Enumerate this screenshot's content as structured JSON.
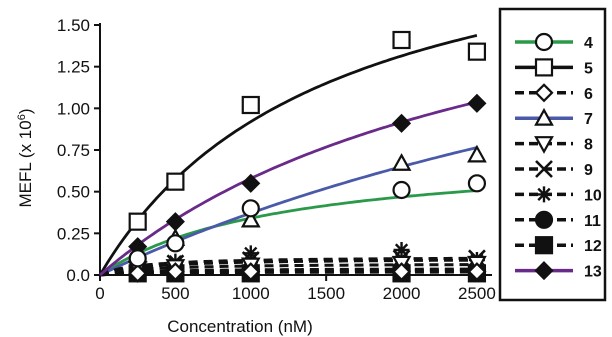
{
  "chart_data": {
    "type": "scatter",
    "xlabel": "Concentration (nM)",
    "ylabel_main": "MEFL (x 10",
    "ylabel_exp": "6",
    "ylabel_close": ")",
    "xlim": [
      0,
      2600
    ],
    "ylim": [
      0,
      1.5
    ],
    "x_ticks": [
      "0",
      "500",
      "1000",
      "1500",
      "2000",
      "2500"
    ],
    "y_ticks": [
      "0.0",
      "0.25",
      "0.50",
      "0.75",
      "1.00",
      "1.25",
      "1.50"
    ],
    "grid": false,
    "legend_position": "right",
    "series": [
      {
        "name": "4",
        "marker": "circle",
        "line_color": "#2a9a4a",
        "line_style": "solid",
        "fit_max": 0.75,
        "fit_k": 1200,
        "points": [
          [
            250,
            0.1
          ],
          [
            500,
            0.19
          ],
          [
            1000,
            0.4
          ],
          [
            2000,
            0.51
          ],
          [
            2500,
            0.55
          ]
        ]
      },
      {
        "name": "5",
        "marker": "square",
        "line_color": "#111111",
        "line_style": "solid",
        "fit_max": 2.3,
        "fit_k": 1500,
        "points": [
          [
            250,
            0.32
          ],
          [
            500,
            0.56
          ],
          [
            1000,
            1.02
          ],
          [
            2000,
            1.41
          ],
          [
            2500,
            1.34
          ]
        ]
      },
      {
        "name": "6",
        "marker": "diamond-open",
        "line_color": "#111111",
        "line_style": "dashed",
        "fit_max": 0.03,
        "fit_k": 300,
        "points": [
          [
            250,
            0.01
          ],
          [
            500,
            0.02
          ],
          [
            1000,
            0.02
          ],
          [
            2000,
            0.02
          ],
          [
            2500,
            0.02
          ]
        ]
      },
      {
        "name": "7",
        "marker": "triangle-up",
        "line_color": "#4a5aa8",
        "line_style": "solid",
        "fit_max": 2.6,
        "fit_k": 6000,
        "points": [
          [
            250,
            0.12
          ],
          [
            500,
            0.22
          ],
          [
            1000,
            0.33
          ],
          [
            2000,
            0.67
          ],
          [
            2500,
            0.72
          ]
        ]
      },
      {
        "name": "8",
        "marker": "triangle-down",
        "line_color": "#111111",
        "line_style": "dashed",
        "fit_max": 0.07,
        "fit_k": 300,
        "points": [
          [
            250,
            0.04
          ],
          [
            500,
            0.05
          ],
          [
            1000,
            0.06
          ],
          [
            2000,
            0.07
          ],
          [
            2500,
            0.07
          ]
        ]
      },
      {
        "name": "9",
        "marker": "x",
        "line_color": "#111111",
        "line_style": "dashed",
        "fit_max": 0.1,
        "fit_k": 300,
        "points": [
          [
            250,
            0.05
          ],
          [
            500,
            0.07
          ],
          [
            1000,
            0.09
          ],
          [
            2000,
            0.1
          ],
          [
            2500,
            0.1
          ]
        ]
      },
      {
        "name": "10",
        "marker": "asterisk",
        "line_color": "#111111",
        "line_style": "dashed",
        "fit_max": 0.11,
        "fit_k": 250,
        "points": [
          [
            250,
            0.06
          ],
          [
            500,
            0.08
          ],
          [
            1000,
            0.13
          ],
          [
            2000,
            0.15
          ],
          [
            2500,
            0.09
          ]
        ]
      },
      {
        "name": "11",
        "marker": "circle-filled",
        "line_color": "#111111",
        "line_style": "dashed",
        "fit_max": 0.04,
        "fit_k": 300,
        "points": [
          [
            250,
            0.02
          ],
          [
            500,
            0.03
          ],
          [
            1000,
            0.03
          ],
          [
            2000,
            0.03
          ],
          [
            2500,
            0.03
          ]
        ]
      },
      {
        "name": "12",
        "marker": "square-filled",
        "line_color": "#111111",
        "line_style": "dashed",
        "fit_max": 0.02,
        "fit_k": 300,
        "points": [
          [
            250,
            0.01
          ],
          [
            500,
            0.01
          ],
          [
            1000,
            0.01
          ],
          [
            2000,
            0.01
          ],
          [
            2500,
            0.01
          ]
        ]
      },
      {
        "name": "13",
        "marker": "diamond-filled",
        "line_color": "#6a2a8a",
        "line_style": "solid",
        "fit_max": 2.2,
        "fit_k": 2800,
        "points": [
          [
            250,
            0.17
          ],
          [
            500,
            0.32
          ],
          [
            1000,
            0.55
          ],
          [
            2000,
            0.91
          ],
          [
            2500,
            1.03
          ]
        ]
      }
    ]
  }
}
